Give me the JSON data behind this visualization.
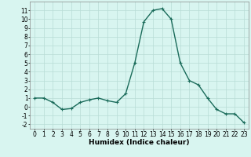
{
  "x": [
    0,
    1,
    2,
    3,
    4,
    5,
    6,
    7,
    8,
    9,
    10,
    11,
    12,
    13,
    14,
    15,
    16,
    17,
    18,
    19,
    20,
    21,
    22,
    23
  ],
  "y": [
    1,
    1,
    0.5,
    -0.3,
    -0.2,
    0.5,
    0.8,
    1.0,
    0.7,
    0.5,
    1.5,
    5.0,
    9.7,
    11.0,
    11.2,
    10.0,
    5.0,
    3.0,
    2.5,
    1.0,
    -0.3,
    -0.8,
    -0.8,
    -1.8
  ],
  "line_color": "#1a6b5a",
  "marker": "+",
  "marker_size": 3,
  "bg_color": "#d8f5f0",
  "grid_color": "#b8dcd6",
  "xlabel": "Humidex (Indice chaleur)",
  "xlim": [
    -0.5,
    23.5
  ],
  "ylim": [
    -2.5,
    12
  ],
  "yticks": [
    -2,
    -1,
    0,
    1,
    2,
    3,
    4,
    5,
    6,
    7,
    8,
    9,
    10,
    11
  ],
  "xticks": [
    0,
    1,
    2,
    3,
    4,
    5,
    6,
    7,
    8,
    9,
    10,
    11,
    12,
    13,
    14,
    15,
    16,
    17,
    18,
    19,
    20,
    21,
    22,
    23
  ],
  "label_fontsize": 6.5,
  "tick_fontsize": 5.5,
  "linewidth": 1.0
}
